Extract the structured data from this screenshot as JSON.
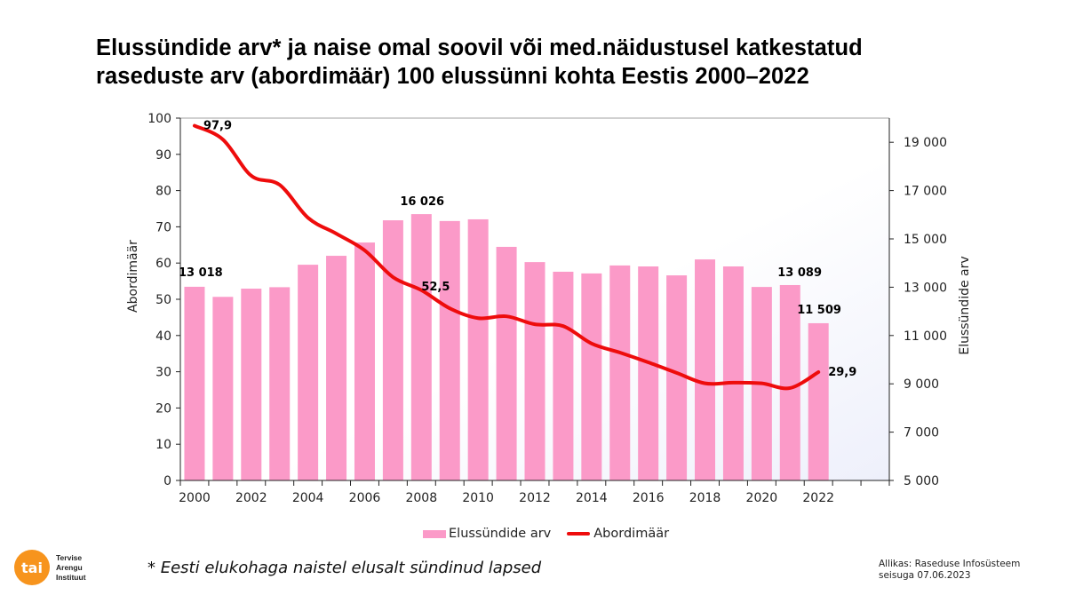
{
  "title_line1": "Elussündide arv* ja naise omal soovil või med.näidustusel katkestatud",
  "title_line2": "raseduste arv (abordimäär) 100 elussünni kohta Eestis 2000–2022",
  "colors": {
    "bars": "#fb9ac8",
    "line": "#ee0c0c",
    "logo": "#f7941d",
    "plot_bg_end": "#eef0fb"
  },
  "chart_data": {
    "type": "bar+line",
    "categories": [
      "2000",
      "2001",
      "2002",
      "2003",
      "2004",
      "2005",
      "2006",
      "2007",
      "2008",
      "2009",
      "2010",
      "2011",
      "2012",
      "2013",
      "2014",
      "2015",
      "2016",
      "2017",
      "2018",
      "2019",
      "2020",
      "2021",
      "2022",
      "2023",
      "2024"
    ],
    "x_tick_labels": [
      "2000",
      "2002",
      "2004",
      "2006",
      "2008",
      "2010",
      "2012",
      "2014",
      "2016",
      "2018",
      "2020",
      "2022"
    ],
    "series": [
      {
        "name": "Elussündide arv",
        "type": "bar",
        "axis": "right",
        "values": [
          13018,
          12600,
          12940,
          13000,
          13930,
          14300,
          14850,
          15770,
          16026,
          15740,
          15810,
          14670,
          14040,
          13640,
          13570,
          13900,
          13860,
          13490,
          14150,
          13860,
          13010,
          13089,
          11509,
          null,
          null
        ]
      },
      {
        "name": "Abordimäär",
        "type": "line",
        "axis": "left",
        "values": [
          97.9,
          94.1,
          84.1,
          81.6,
          72.5,
          68.1,
          63.5,
          56.1,
          52.5,
          47.5,
          44.8,
          45.3,
          43.1,
          42.6,
          37.8,
          35.3,
          32.6,
          29.7,
          26.8,
          27.0,
          26.8,
          25.5,
          29.9,
          null,
          null
        ]
      }
    ],
    "data_labels": [
      {
        "series": 0,
        "index": 0,
        "text": "13 018"
      },
      {
        "series": 0,
        "index": 8,
        "text": "16 026"
      },
      {
        "series": 0,
        "index": 21,
        "text": "13 089"
      },
      {
        "series": 0,
        "index": 22,
        "text": "11 509"
      },
      {
        "series": 1,
        "index": 0,
        "text": "97,9"
      },
      {
        "series": 1,
        "index": 8,
        "text": "52,5"
      },
      {
        "series": 1,
        "index": 22,
        "text": "29,9"
      }
    ],
    "y_left": {
      "label": "Abordimäär",
      "lim": [
        0,
        100
      ],
      "ticks": [
        "0",
        "10",
        "20",
        "30",
        "40",
        "50",
        "60",
        "70",
        "80",
        "90",
        "100"
      ]
    },
    "y_right": {
      "label": "Elussündide arv",
      "lim": [
        5000,
        20000
      ],
      "ticks": [
        "5 000",
        "7 000",
        "9 000",
        "11 000",
        "13 000",
        "15 000",
        "17 000",
        "19 000"
      ]
    },
    "legend": "bottom",
    "grid": false
  },
  "legend": {
    "bars": "Elussündide arv",
    "line": "Abordimäär"
  },
  "logo": {
    "mark": "tai",
    "text_lines": [
      "Tervise",
      "Arengu",
      "Instituut"
    ]
  },
  "footnote": "* Eesti elukohaga naistel elusalt sündinud lapsed",
  "source_line1": "Allikas: Raseduse Infosüsteem",
  "source_line2": "seisuga 07.06.2023"
}
